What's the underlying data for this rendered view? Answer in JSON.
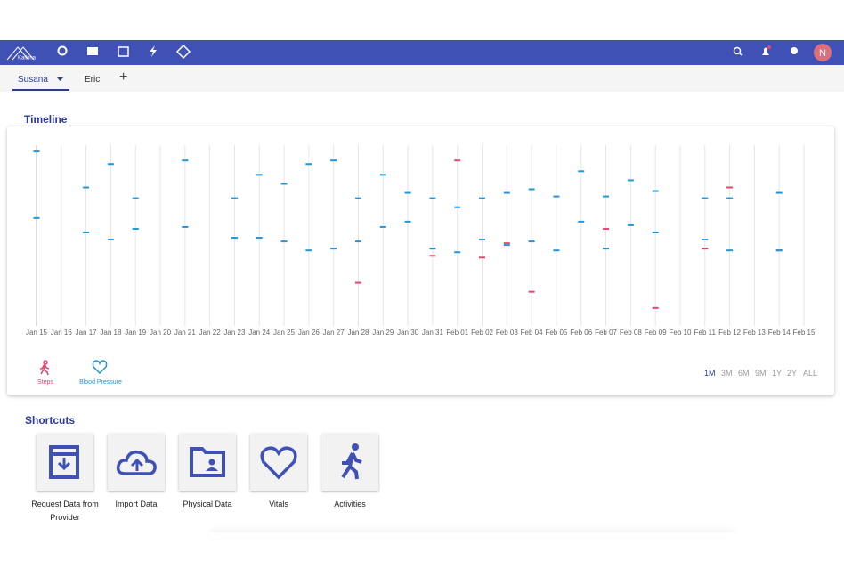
{
  "header": {
    "logo": "Kailona",
    "avatar": "N"
  },
  "tabs": [
    "Susana",
    "Eric"
  ],
  "timeline_title": "Timeline",
  "chart_data": {
    "type": "timeline",
    "categories": [
      "Jan 15",
      "Jan 16",
      "Jan 17",
      "Jan 18",
      "Jan 19",
      "Jan 20",
      "Jan 21",
      "Jan 22",
      "Jan 23",
      "Jan 24",
      "Jan 25",
      "Jan 26",
      "Jan 27",
      "Jan 28",
      "Jan 29",
      "Jan 30",
      "Jan 31",
      "Feb 01",
      "Feb 02",
      "Feb 03",
      "Feb 04",
      "Feb 05",
      "Feb 06",
      "Feb 07",
      "Feb 08",
      "Feb 09",
      "Feb 10",
      "Feb 11",
      "Feb 12",
      "Feb 13",
      "Feb 14",
      "Feb 15"
    ],
    "ylim": [
      0,
      100
    ],
    "series": [
      {
        "name": "Steps",
        "color": "#e8466e",
        "x": [
          "Jan 28",
          "Jan 31",
          "Feb 01",
          "Feb 02",
          "Feb 03",
          "Feb 04",
          "Feb 07",
          "Feb 09",
          "Feb 11",
          "Feb 12",
          "Feb 14"
        ],
        "values": [
          22,
          37,
          90,
          36,
          44,
          17,
          52,
          8,
          41,
          75,
          40
        ]
      },
      {
        "name": "Blood Pressure",
        "color": "#2196d8",
        "x": [
          "Jan 15",
          "Jan 15",
          "Jan 17",
          "Jan 17",
          "Jan 18",
          "Jan 18",
          "Jan 19",
          "Jan 19",
          "Jan 21",
          "Jan 21",
          "Jan 23",
          "Jan 23",
          "Jan 24",
          "Jan 24",
          "Jan 25",
          "Jan 25",
          "Jan 26",
          "Jan 26",
          "Jan 27",
          "Jan 27",
          "Jan 28",
          "Jan 28",
          "Jan 29",
          "Jan 29",
          "Jan 30",
          "Jan 30",
          "Jan 31",
          "Jan 31",
          "Feb 01",
          "Feb 01",
          "Feb 02",
          "Feb 02",
          "Feb 03",
          "Feb 03",
          "Feb 04",
          "Feb 04",
          "Feb 05",
          "Feb 05",
          "Feb 06",
          "Feb 06",
          "Feb 07",
          "Feb 07",
          "Feb 08",
          "Feb 08",
          "Feb 09",
          "Feb 09",
          "Feb 11",
          "Feb 11",
          "Feb 12",
          "Feb 12",
          "Feb 14",
          "Feb 14"
        ],
        "values": [
          95,
          58,
          75,
          50,
          88,
          46,
          69,
          52,
          90,
          53,
          69,
          47,
          82,
          47,
          77,
          45,
          88,
          40,
          90,
          41,
          69,
          45,
          82,
          53,
          72,
          56,
          69,
          41,
          64,
          39,
          69,
          46,
          72,
          43,
          74,
          45,
          70,
          40,
          84,
          56,
          70,
          41,
          79,
          54,
          73,
          50,
          69,
          46,
          69,
          40,
          72,
          40
        ]
      }
    ]
  },
  "range_options": [
    "1M",
    "3M",
    "6M",
    "9M",
    "1Y",
    "2Y",
    "ALL"
  ],
  "shortcuts_title": "Shortcuts",
  "shortcuts": [
    "Request Data from Provider",
    "Import Data",
    "Physical Data",
    "Vitals",
    "Activities"
  ]
}
